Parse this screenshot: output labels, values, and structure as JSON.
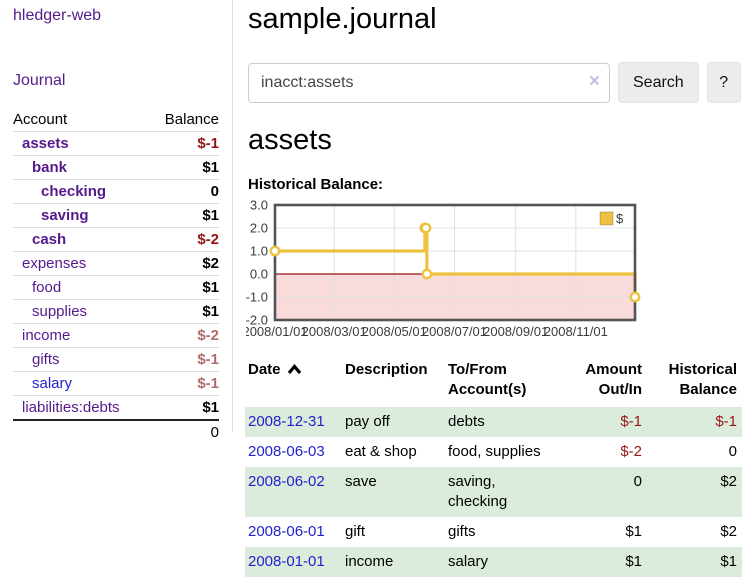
{
  "app": {
    "brand": "hledger-web"
  },
  "colors": {
    "link_purple": "#551a8b",
    "link_blue": "#2222cc",
    "negative_strong": "#941616",
    "negative_soft": "#b36b6b",
    "row_stripe_green": "#dcecdc"
  },
  "sidebar": {
    "journal_link": "Journal",
    "table": {
      "headers": {
        "account": "Account",
        "balance": "Balance"
      },
      "rows": [
        {
          "account": "assets",
          "balance": "$-1"
        },
        {
          "account": "bank",
          "balance": "$1"
        },
        {
          "account": "checking",
          "balance": "0"
        },
        {
          "account": "saving",
          "balance": "$1"
        },
        {
          "account": "cash",
          "balance": "$-2"
        },
        {
          "account": "expenses",
          "balance": "$2"
        },
        {
          "account": "food",
          "balance": "$1"
        },
        {
          "account": "supplies",
          "balance": "$1"
        },
        {
          "account": "income",
          "balance": "$-2"
        },
        {
          "account": "gifts",
          "balance": "$-1"
        },
        {
          "account": "salary",
          "balance": "$-1"
        },
        {
          "account": "liabilities:debts",
          "balance": "$1"
        }
      ],
      "total": "0"
    }
  },
  "header": {
    "title": "sample.journal"
  },
  "search": {
    "value": "inacct:assets",
    "clear_icon": "×",
    "button": "Search",
    "help_button": "?"
  },
  "main": {
    "heading": "assets",
    "chart_label": "Historical Balance:"
  },
  "chart_data": {
    "type": "line",
    "title": "Historical Balance:",
    "steps": true,
    "series": [
      {
        "name": "$",
        "points": [
          [
            "2008-01-01",
            1
          ],
          [
            "2008-06-01",
            2
          ],
          [
            "2008-06-02",
            2
          ],
          [
            "2008-06-03",
            0
          ],
          [
            "2008-12-31",
            -1
          ]
        ]
      }
    ],
    "x_ticks": [
      "2008/01/01",
      "2008/03/01",
      "2008/05/01",
      "2008/07/01",
      "2008/09/01",
      "2008/11/01"
    ],
    "y_ticks": [
      3.0,
      2.0,
      1.0,
      0.0,
      -1.0,
      -2.0
    ],
    "xlim": [
      "2008-01-01",
      "2008-12-31"
    ],
    "ylim": [
      -2,
      3
    ],
    "grid": true,
    "legend_position": "top-right",
    "negative_region_shaded": true,
    "colors": {
      "line": "#edc240",
      "negative_region": "#f9dbdb",
      "zero_line": "#991111",
      "grid": "#e0e0e0",
      "border": "#545454"
    }
  },
  "register": {
    "headers": {
      "date": "Date",
      "description": "Description",
      "account": [
        "To/From",
        "Account(s)"
      ],
      "amount": [
        "Amount",
        "Out/In"
      ],
      "balance": [
        "Historical",
        "Balance"
      ]
    },
    "rows": [
      {
        "date": "2008-12-31",
        "description": "pay off",
        "account": "debts",
        "amount": "$-1",
        "balance": "$-1"
      },
      {
        "date": "2008-06-03",
        "description": "eat & shop",
        "account": "food, supplies",
        "amount": "$-2",
        "balance": "0"
      },
      {
        "date": "2008-06-02",
        "description": "save",
        "account": "saving,\nchecking",
        "amount": "0",
        "balance": "$2"
      },
      {
        "date": "2008-06-01",
        "description": "gift",
        "account": "gifts",
        "amount": "$1",
        "balance": "$2"
      },
      {
        "date": "2008-01-01",
        "description": "income",
        "account": "salary",
        "amount": "$1",
        "balance": "$1"
      }
    ]
  }
}
